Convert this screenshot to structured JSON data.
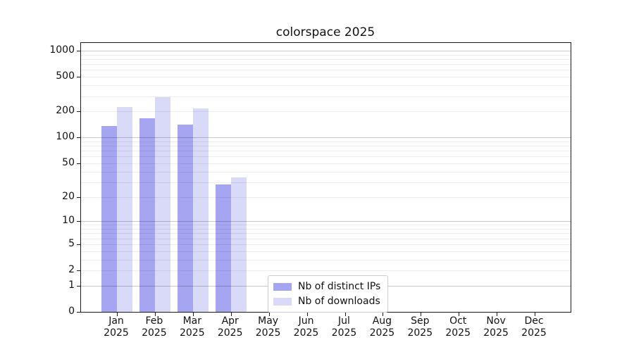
{
  "figure": {
    "background": "#ffffff",
    "spine_color": "#1a1a1a"
  },
  "chart_data": {
    "type": "bar",
    "title": "colorspace 2025",
    "categories": [
      "Jan 2025",
      "Feb 2025",
      "Mar 2025",
      "Apr 2025",
      "May 2025",
      "Jun 2025",
      "Jul 2025",
      "Aug 2025",
      "Sep 2025",
      "Oct 2025",
      "Nov 2025",
      "Dec 2025"
    ],
    "months": [
      "Jan",
      "Feb",
      "Mar",
      "Apr",
      "May",
      "Jun",
      "Jul",
      "Aug",
      "Sep",
      "Oct",
      "Nov",
      "Dec"
    ],
    "year": "2025",
    "series": [
      {
        "name": "Nb of distinct IPs",
        "color": "#a5a5f2",
        "values": [
          136,
          167,
          140,
          28,
          null,
          null,
          null,
          null,
          null,
          null,
          null,
          null
        ]
      },
      {
        "name": "Nb of downloads",
        "color": "#d9d9f8",
        "values": [
          226,
          293,
          218,
          34,
          null,
          null,
          null,
          null,
          null,
          null,
          null,
          null
        ]
      }
    ],
    "xlabel": "",
    "ylabel": "",
    "y_scale": "log1p",
    "ylim": [
      0,
      1226
    ],
    "y_ticks": [
      1000,
      500,
      200,
      100,
      50,
      20,
      10,
      5,
      2,
      1,
      0
    ],
    "grid": {
      "major": [
        1,
        10,
        100,
        1000
      ],
      "minor": [
        2,
        3,
        4,
        5,
        6,
        7,
        8,
        9,
        20,
        30,
        40,
        50,
        60,
        70,
        80,
        90,
        200,
        300,
        400,
        500,
        600,
        700,
        800,
        900
      ],
      "major_color": "rgba(0,0,0,0.21)",
      "minor_color": "rgba(0,0,0,0.07)"
    },
    "legend_position": "lower center-left inside plot"
  }
}
